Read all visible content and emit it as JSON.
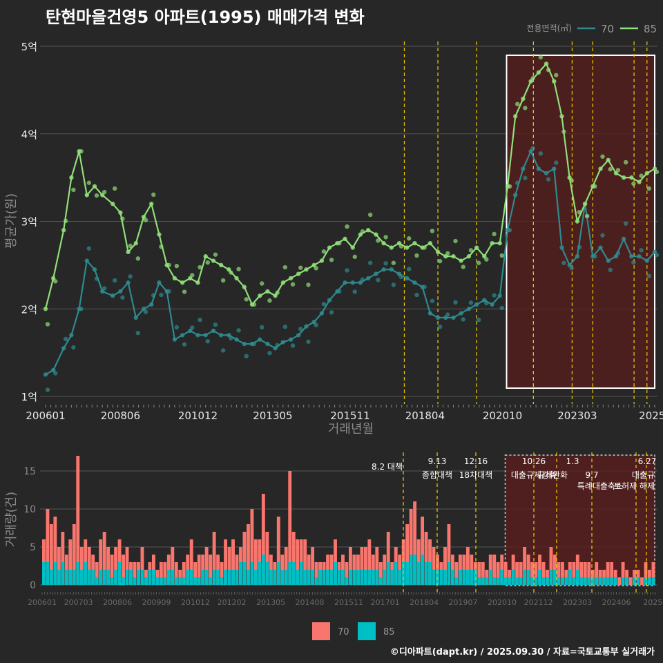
{
  "title": "탄현마을건영5 아파트(1995) 매매가격 변화",
  "footer": "©디아파트(dapt.kr) / 2025.09.30 / 자료=국토교통부 실거래가",
  "colors": {
    "background": "#272727",
    "s70_line": "#2e8b8f",
    "s85_line": "#90e07a",
    "s70_bar": "#f8766d",
    "s85_bar": "#00bfc4",
    "event_line": "#e6c200",
    "highlight": "#5a1e1e"
  },
  "chart_data": [
    {
      "type": "line",
      "title": "탄현마을건영5 아파트(1995) 매매가격 변화",
      "xlabel": "거래년월",
      "ylabel": "평균가(원)",
      "ylim": [
        1,
        5
      ],
      "yticks": [
        1,
        2,
        3,
        4,
        5
      ],
      "ytick_labels": [
        "1억",
        "2억",
        "3억",
        "4억",
        "5억"
      ],
      "xlim": [
        "2006-01",
        "2025-09"
      ],
      "xtick_labels": [
        "200601",
        "200806",
        "201012",
        "201305",
        "201511",
        "201804",
        "202010",
        "202303",
        "2025"
      ],
      "legend_title": "전용면적(㎡)",
      "legend_position": "top-right",
      "events": [
        "2017-08",
        "2018-09",
        "2019-12",
        "2021-10",
        "2023-01",
        "2023-09",
        "2025-01",
        "2025-06"
      ],
      "highlight_range": [
        "2020-10",
        "2025-09"
      ],
      "units": "억",
      "series": [
        {
          "name": "70",
          "x": [
            "2006-01",
            "2006-04",
            "2006-08",
            "2006-11",
            "2007-02",
            "2007-05",
            "2007-08",
            "2007-11",
            "2008-03",
            "2008-06",
            "2008-09",
            "2008-12",
            "2009-03",
            "2009-06",
            "2009-09",
            "2009-12",
            "2010-03",
            "2010-06",
            "2010-09",
            "2010-12",
            "2011-03",
            "2011-06",
            "2011-09",
            "2011-12",
            "2012-03",
            "2012-06",
            "2012-09",
            "2012-12",
            "2013-03",
            "2013-06",
            "2013-09",
            "2013-12",
            "2014-03",
            "2014-06",
            "2014-09",
            "2014-12",
            "2015-03",
            "2015-06",
            "2015-09",
            "2015-12",
            "2016-03",
            "2016-06",
            "2016-09",
            "2016-12",
            "2017-03",
            "2017-06",
            "2017-09",
            "2017-12",
            "2018-03",
            "2018-06",
            "2018-09",
            "2018-12",
            "2019-03",
            "2019-06",
            "2019-09",
            "2019-12",
            "2020-03",
            "2020-06",
            "2020-09",
            "2020-12",
            "2021-03",
            "2021-06",
            "2021-09",
            "2021-12",
            "2022-03",
            "2022-06",
            "2022-09",
            "2022-12",
            "2023-03",
            "2023-06",
            "2023-09",
            "2023-12",
            "2024-03",
            "2024-06",
            "2024-09",
            "2024-12",
            "2025-03",
            "2025-06",
            "2025-09"
          ],
          "y": [
            1.25,
            1.3,
            1.55,
            1.7,
            2.0,
            2.55,
            2.45,
            2.2,
            2.15,
            2.2,
            2.3,
            1.9,
            2.0,
            2.05,
            2.3,
            2.2,
            1.65,
            1.7,
            1.75,
            1.7,
            1.7,
            1.75,
            1.7,
            1.7,
            1.65,
            1.6,
            1.6,
            1.65,
            1.6,
            1.55,
            1.62,
            1.65,
            1.7,
            1.8,
            1.85,
            1.95,
            2.1,
            2.2,
            2.3,
            2.3,
            2.3,
            2.35,
            2.4,
            2.45,
            2.45,
            2.4,
            2.35,
            2.3,
            2.25,
            1.95,
            1.9,
            1.9,
            1.9,
            1.95,
            2.0,
            2.05,
            2.1,
            2.05,
            2.15,
            2.9,
            3.3,
            3.6,
            3.8,
            3.6,
            3.55,
            3.6,
            2.7,
            2.5,
            2.6,
            3.2,
            2.6,
            2.7,
            2.55,
            2.6,
            2.8,
            2.6,
            2.6,
            2.55,
            2.65
          ]
        },
        {
          "name": "85",
          "x": [
            "2006-01",
            "2006-04",
            "2006-08",
            "2006-11",
            "2007-02",
            "2007-05",
            "2007-08",
            "2007-11",
            "2008-03",
            "2008-06",
            "2008-09",
            "2008-12",
            "2009-03",
            "2009-06",
            "2009-09",
            "2009-12",
            "2010-03",
            "2010-06",
            "2010-09",
            "2010-12",
            "2011-03",
            "2011-06",
            "2011-09",
            "2011-12",
            "2012-03",
            "2012-06",
            "2012-09",
            "2012-12",
            "2013-03",
            "2013-06",
            "2013-09",
            "2013-12",
            "2014-03",
            "2014-06",
            "2014-09",
            "2014-12",
            "2015-03",
            "2015-06",
            "2015-09",
            "2015-12",
            "2016-03",
            "2016-06",
            "2016-09",
            "2016-12",
            "2017-03",
            "2017-06",
            "2017-09",
            "2017-12",
            "2018-03",
            "2018-06",
            "2018-09",
            "2018-12",
            "2019-03",
            "2019-06",
            "2019-09",
            "2019-12",
            "2020-03",
            "2020-06",
            "2020-09",
            "2020-12",
            "2021-03",
            "2021-06",
            "2021-09",
            "2021-12",
            "2022-03",
            "2022-06",
            "2022-09",
            "2022-12",
            "2023-03",
            "2023-06",
            "2023-09",
            "2023-12",
            "2024-03",
            "2024-06",
            "2024-09",
            "2024-12",
            "2025-03",
            "2025-06",
            "2025-09"
          ],
          "y": [
            2.0,
            2.35,
            2.9,
            3.5,
            3.8,
            3.3,
            3.4,
            3.3,
            3.2,
            3.1,
            2.65,
            2.75,
            3.05,
            3.2,
            2.85,
            2.5,
            2.35,
            2.3,
            2.35,
            2.3,
            2.6,
            2.55,
            2.5,
            2.45,
            2.35,
            2.25,
            2.05,
            2.15,
            2.2,
            2.15,
            2.3,
            2.35,
            2.4,
            2.45,
            2.5,
            2.55,
            2.7,
            2.75,
            2.8,
            2.7,
            2.85,
            2.9,
            2.85,
            2.75,
            2.7,
            2.75,
            2.7,
            2.75,
            2.7,
            2.75,
            2.65,
            2.6,
            2.6,
            2.55,
            2.6,
            2.7,
            2.6,
            2.75,
            2.75,
            3.4,
            4.2,
            4.4,
            4.6,
            4.7,
            4.8,
            4.6,
            4.2,
            3.5,
            3.0,
            3.2,
            3.4,
            3.6,
            3.7,
            3.55,
            3.5,
            3.5,
            3.45,
            3.55,
            3.6
          ]
        }
      ]
    },
    {
      "type": "bar",
      "xlabel": "",
      "ylabel": "거래량(건)",
      "ylim": [
        0,
        17
      ],
      "yticks": [
        0,
        5,
        10,
        15
      ],
      "ytick_labels": [
        "0",
        "5",
        "10",
        "15"
      ],
      "xtick_labels": [
        "200601",
        "200703",
        "200806",
        "200909",
        "201012",
        "201202",
        "201305",
        "201408",
        "201511",
        "201701",
        "201804",
        "201907",
        "202010",
        "202112",
        "202303",
        "202406",
        "2025"
      ],
      "legend_position": "bottom",
      "legend": [
        "70",
        "85"
      ],
      "highlight_range": [
        "2020-10",
        "2025-09"
      ],
      "events": [
        {
          "date": "2017-08",
          "label": "8.2 대책"
        },
        {
          "date": "2018-09",
          "label": "9.13\n종합대책"
        },
        {
          "date": "2019-12",
          "label": "12.16\n18차대책"
        },
        {
          "date": "2021-10",
          "label": "10.26\n대출규제강화"
        },
        {
          "date": "2023-01",
          "label": "1.3\n규제완화"
        },
        {
          "date": "2023-09",
          "label": "9.7\n특례대출축소"
        },
        {
          "date": "2025-01",
          "label": "토허제 해제"
        },
        {
          "date": "2025-06",
          "label": "6.27\n대출규"
        }
      ],
      "event_label_lines": [
        "8.2 대책",
        "9.13",
        "종합대책",
        "12.16",
        "18차대책",
        "10.26",
        "대출규제강화",
        "1.3",
        "규제완화",
        "9.7",
        "특례대출축소",
        "토허제 해제",
        "6.27",
        "대출규"
      ],
      "series": [
        {
          "name": "70",
          "values": [
            6,
            10,
            8,
            9,
            5,
            7,
            4,
            6,
            8,
            17,
            5,
            6,
            5,
            4,
            3,
            6,
            7,
            5,
            4,
            5,
            6,
            4,
            5,
            3,
            3,
            3,
            5,
            2,
            3,
            4,
            2,
            3,
            3,
            4,
            5,
            3,
            2,
            3,
            4,
            6,
            3,
            4,
            4,
            5,
            4,
            7,
            4,
            3,
            6,
            5,
            6,
            4,
            5,
            7,
            8,
            10,
            6,
            6,
            12,
            7,
            4,
            3,
            9,
            4,
            5,
            15,
            7,
            6,
            6,
            6,
            4,
            5,
            3,
            3,
            3,
            4,
            4,
            6,
            3,
            4,
            3,
            5,
            4,
            4,
            5,
            5,
            6,
            4,
            5,
            3,
            4,
            7,
            3,
            5,
            4,
            6,
            8,
            10,
            11,
            6,
            9,
            7,
            6,
            5,
            4,
            3,
            5,
            8,
            4,
            3,
            4,
            4,
            5,
            4,
            3,
            3,
            3,
            2,
            4,
            4,
            3,
            4,
            3,
            2,
            4,
            3,
            3,
            5,
            4,
            3,
            3,
            4,
            3,
            2,
            5,
            4,
            3,
            3,
            2,
            3,
            3,
            4,
            3,
            3,
            3,
            2,
            3,
            2,
            2,
            3,
            3,
            2,
            1,
            3,
            2,
            1,
            2,
            2,
            1,
            3,
            2,
            3
          ]
        },
        {
          "name": "85",
          "values": [
            3,
            3,
            2,
            3,
            2,
            3,
            2,
            2,
            2,
            3,
            2,
            3,
            2,
            2,
            1,
            2,
            2,
            2,
            1,
            2,
            3,
            1,
            2,
            2,
            1,
            2,
            2,
            1,
            2,
            2,
            1,
            1,
            1,
            2,
            2,
            1,
            1,
            1,
            2,
            2,
            1,
            1,
            2,
            2,
            1,
            2,
            2,
            1,
            2,
            2,
            2,
            2,
            3,
            3,
            2,
            3,
            2,
            3,
            4,
            3,
            2,
            2,
            3,
            2,
            2,
            3,
            3,
            2,
            3,
            2,
            2,
            2,
            1,
            2,
            2,
            2,
            2,
            3,
            2,
            2,
            1,
            2,
            2,
            2,
            2,
            2,
            2,
            2,
            2,
            1,
            2,
            3,
            2,
            3,
            2,
            3,
            3,
            4,
            4,
            3,
            4,
            3,
            3,
            2,
            2,
            2,
            2,
            3,
            2,
            1,
            2,
            2,
            2,
            2,
            2,
            1,
            1,
            1,
            2,
            1,
            1,
            2,
            1,
            1,
            2,
            1,
            1,
            2,
            2,
            1,
            1,
            2,
            1,
            1,
            2,
            2,
            1,
            1,
            1,
            2,
            1,
            2,
            1,
            1,
            1,
            1,
            1,
            1,
            1,
            1,
            1,
            1,
            0,
            1,
            1,
            0,
            1,
            1,
            0,
            1,
            1,
            1
          ]
        }
      ]
    }
  ]
}
